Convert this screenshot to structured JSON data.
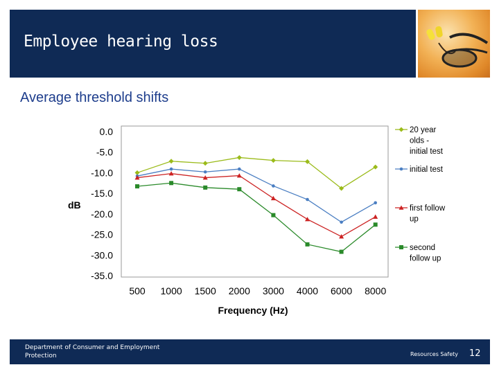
{
  "slide": {
    "title": "Employee hearing loss",
    "subtitle": "Average threshold shifts",
    "footer_department": "Department of Consumer and Employment Protection",
    "footer_right": "Resources Safety",
    "page_number": "12",
    "photo_icon": "safety-glasses-earplugs-photo"
  },
  "chart_data": {
    "type": "line",
    "title": "",
    "xlabel": "Frequency (Hz)",
    "ylabel": "dB",
    "categories": [
      "500",
      "1000",
      "1500",
      "2000",
      "3000",
      "4000",
      "6000",
      "8000"
    ],
    "ylim": [
      -35,
      0
    ],
    "yticks": [
      0,
      -5,
      -10,
      -15,
      -20,
      -25,
      -30,
      -35
    ],
    "ytick_labels": [
      "0.0",
      "-5.0",
      "-10.0",
      "-15.0",
      "-20.0",
      "-25.0",
      "-30.0",
      "-35.0"
    ],
    "grid": false,
    "legend_position": "right",
    "series": [
      {
        "name": "20 year olds - initial test",
        "legend_lines": [
          "20 year",
          "olds -",
          "initial test"
        ],
        "color": "#9bbb1a",
        "marker": "diamond",
        "values": [
          -10,
          -7.2,
          -7.7,
          -6.3,
          -7.0,
          -7.3,
          -13.8,
          -8.6
        ]
      },
      {
        "name": "initial test",
        "legend_lines": [
          "initial test"
        ],
        "color": "#4a7ec2",
        "marker": "dot",
        "values": [
          -10.8,
          -9.1,
          -9.8,
          -9.1,
          -13.2,
          -16.5,
          -22.0,
          -17.3
        ]
      },
      {
        "name": "first follow up",
        "legend_lines": [
          "first follow",
          "up"
        ],
        "color": "#cc2222",
        "marker": "triangle",
        "values": [
          -11.2,
          -10.2,
          -11.2,
          -10.7,
          -16.2,
          -21.3,
          -25.5,
          -20.7
        ]
      },
      {
        "name": "second follow up",
        "legend_lines": [
          "second",
          "follow up"
        ],
        "color": "#2a8a2a",
        "marker": "square",
        "values": [
          -13.3,
          -12.5,
          -13.6,
          -14.0,
          -20.3,
          -27.4,
          -29.2,
          -22.6
        ]
      }
    ]
  }
}
